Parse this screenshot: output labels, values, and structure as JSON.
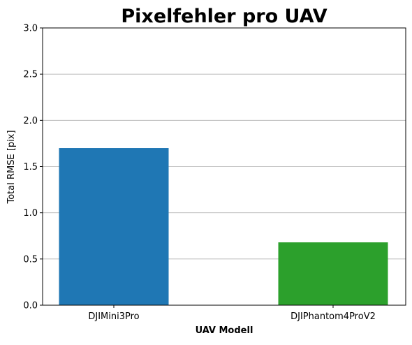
{
  "chart_data": {
    "type": "bar",
    "title": "Pixelfehler pro UAV",
    "xlabel": "UAV Modell",
    "ylabel": "Total RMSE [pix]",
    "categories": [
      "DJIMini3Pro",
      "DJIPhantom4ProV2"
    ],
    "values": [
      1.7,
      0.68
    ],
    "colors": [
      "#1f77b4",
      "#2ca02c"
    ],
    "ylim": [
      0,
      3.0
    ],
    "yticks": [
      "0.0",
      "0.5",
      "1.0",
      "1.5",
      "2.0",
      "2.5",
      "3.0"
    ],
    "grid": "y",
    "legend": "none"
  }
}
